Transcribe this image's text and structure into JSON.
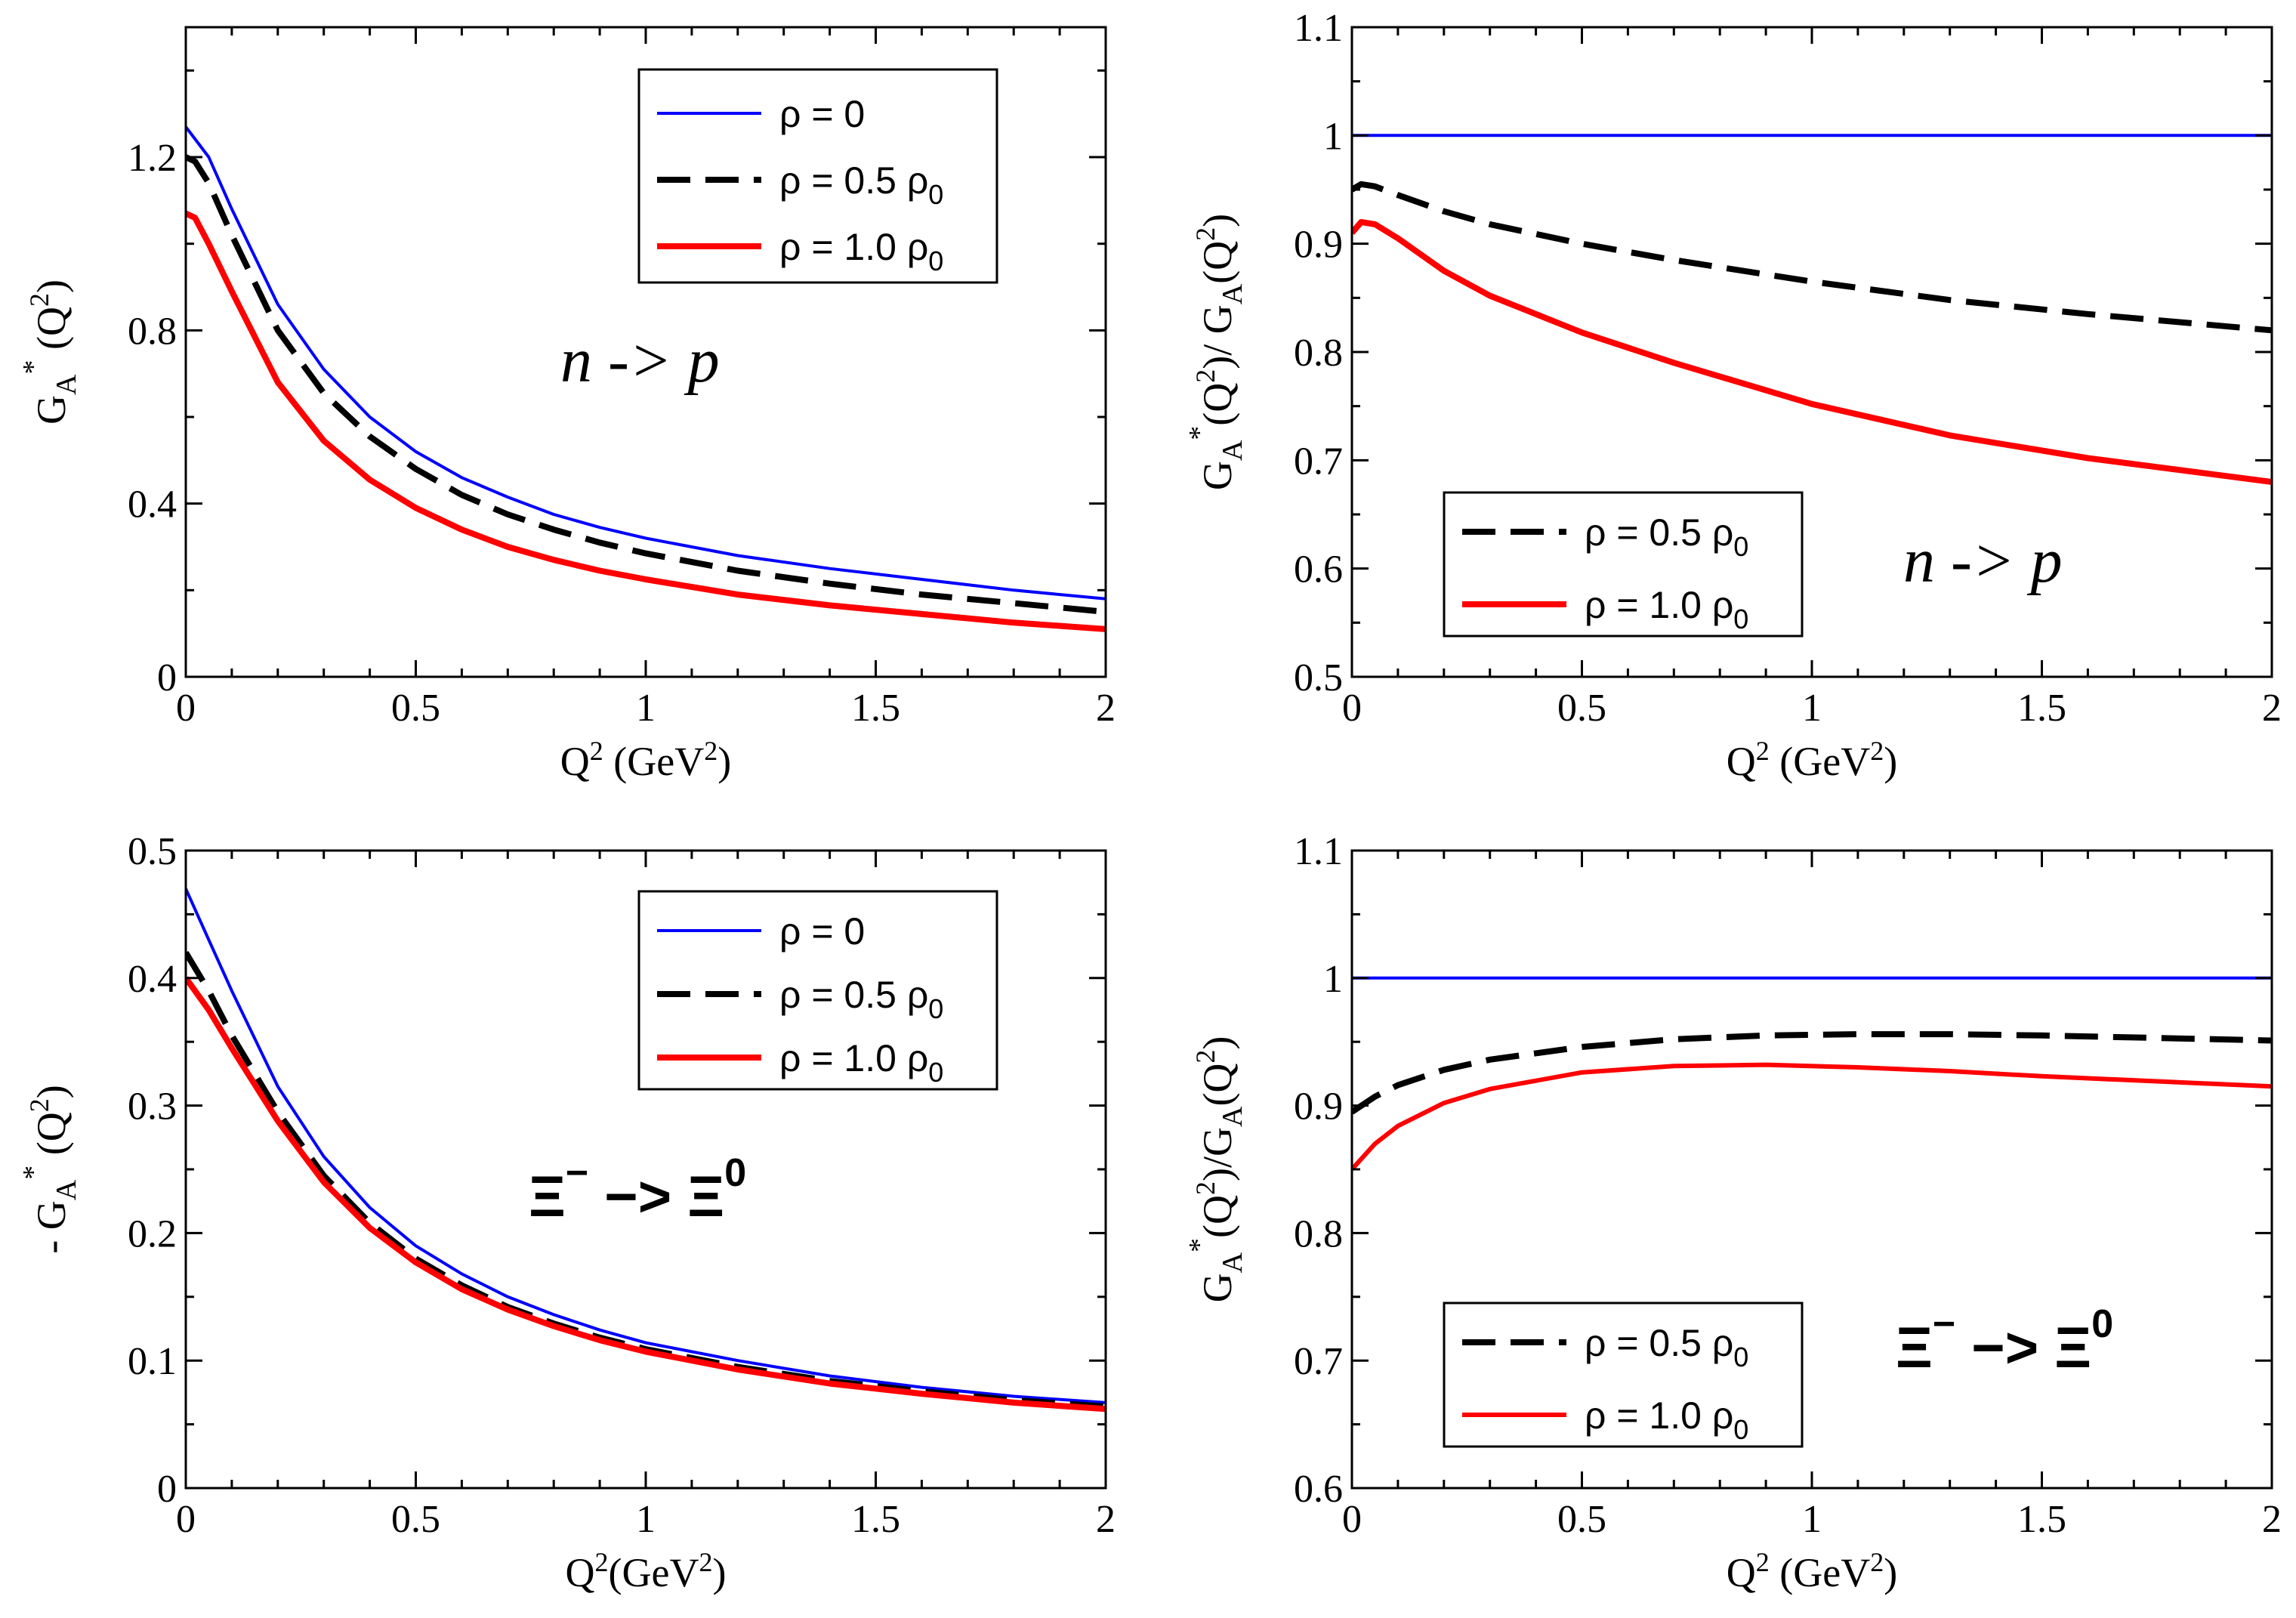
{
  "chart_data": [
    {
      "type": "line",
      "panel": "top-left",
      "xlabel": "Q^2 (GeV^2)",
      "ylabel": "G_A^*(Q^2)",
      "xlabel_parts": {
        "q": "Q",
        "sup1": "2",
        "unit": " (GeV",
        "sup2": "2",
        "close": ")"
      },
      "ylabel_parts": {
        "g": "G",
        "sub": "A",
        "star": "*",
        "arg": " (Q",
        "sup": "2",
        "close": ")"
      },
      "xlim": [
        0,
        2
      ],
      "ylim": [
        0,
        1.5
      ],
      "xticks": [
        0,
        0.5,
        1,
        1.5,
        2
      ],
      "xtick_labels": [
        "0",
        "0.5",
        "1",
        "1.5",
        "2"
      ],
      "yticks": [
        0,
        0.4,
        0.8,
        1.2
      ],
      "ytick_labels": [
        "0",
        "0.4",
        "0.8",
        "1.2"
      ],
      "annotation": "n -> p",
      "legend_position": "top-right",
      "legend": [
        {
          "text": "ρ =  0",
          "sub": ""
        },
        {
          "text": "ρ = 0.5 ρ",
          "sub": "0"
        },
        {
          "text": "ρ = 1.0 ρ",
          "sub": "0"
        }
      ],
      "series": [
        {
          "name": "ρ = 0",
          "color": "#0000ff",
          "style": "solid",
          "width": 4,
          "x": [
            0,
            0.05,
            0.1,
            0.2,
            0.3,
            0.4,
            0.5,
            0.6,
            0.7,
            0.8,
            0.9,
            1.0,
            1.2,
            1.4,
            1.6,
            1.8,
            2.0
          ],
          "y": [
            1.27,
            1.2,
            1.08,
            0.86,
            0.71,
            0.6,
            0.52,
            0.46,
            0.415,
            0.375,
            0.345,
            0.32,
            0.28,
            0.25,
            0.225,
            0.2,
            0.18
          ]
        },
        {
          "name": "ρ = 0.5 ρ0",
          "color": "#000000",
          "style": "dashed",
          "width": 8,
          "x": [
            0,
            0.02,
            0.05,
            0.1,
            0.2,
            0.3,
            0.4,
            0.5,
            0.6,
            0.7,
            0.8,
            0.9,
            1.0,
            1.2,
            1.4,
            1.6,
            1.8,
            2.0
          ],
          "y": [
            1.2,
            1.19,
            1.14,
            1.02,
            0.8,
            0.655,
            0.555,
            0.48,
            0.42,
            0.375,
            0.34,
            0.31,
            0.285,
            0.245,
            0.215,
            0.19,
            0.17,
            0.15
          ]
        },
        {
          "name": "ρ = 1.0 ρ0",
          "color": "#ff0000",
          "style": "solid",
          "width": 8,
          "x": [
            0,
            0.02,
            0.05,
            0.1,
            0.2,
            0.3,
            0.4,
            0.5,
            0.6,
            0.7,
            0.8,
            0.9,
            1.0,
            1.2,
            1.4,
            1.6,
            1.8,
            2.0
          ],
          "y": [
            1.07,
            1.06,
            1.0,
            0.89,
            0.68,
            0.545,
            0.455,
            0.39,
            0.34,
            0.3,
            0.27,
            0.245,
            0.225,
            0.19,
            0.165,
            0.145,
            0.125,
            0.11
          ]
        }
      ]
    },
    {
      "type": "line",
      "panel": "top-right",
      "xlabel": "Q^2 (GeV^2)",
      "ylabel": "G_A^*(Q^2)/ G_A(Q^2)",
      "xlabel_parts": {
        "q": "Q",
        "sup1": "2",
        "unit": " (GeV",
        "sup2": "2",
        "close": ")"
      },
      "ylabel_parts": {
        "g": "G",
        "sub": "A",
        "star": "*",
        "arg": "(Q",
        "sup": "2",
        "mid": ")/ G",
        "sub2": "A",
        "arg2": "(Q",
        "sup2": "2",
        "close": ")"
      },
      "xlim": [
        0,
        2
      ],
      "ylim": [
        0.5,
        1.1
      ],
      "xticks": [
        0,
        0.5,
        1,
        1.5,
        2
      ],
      "xtick_labels": [
        "0",
        "0.5",
        "1",
        "1.5",
        "2"
      ],
      "yticks": [
        0.5,
        0.6,
        0.7,
        0.8,
        0.9,
        1,
        1.1
      ],
      "ytick_labels": [
        "0.5",
        "0.6",
        "0.7",
        "0.8",
        "0.9",
        "1",
        "1.1"
      ],
      "annotation": "n ->  p",
      "legend_position": "bottom-left",
      "legend": [
        {
          "text": "ρ = 0.5 ρ",
          "sub": "0"
        },
        {
          "text": "ρ = 1.0 ρ",
          "sub": "0"
        }
      ],
      "series": [
        {
          "name": "ρ = 0",
          "color": "#0000ff",
          "style": "solid",
          "width": 4,
          "x": [
            0,
            2
          ],
          "y": [
            1.0,
            1.0
          ]
        },
        {
          "name": "ρ = 0.5 ρ0",
          "color": "#000000",
          "style": "dashed",
          "width": 8,
          "x": [
            0,
            0.02,
            0.05,
            0.1,
            0.2,
            0.3,
            0.5,
            0.7,
            1.0,
            1.3,
            1.6,
            2.0
          ],
          "y": [
            0.95,
            0.955,
            0.953,
            0.945,
            0.93,
            0.918,
            0.9,
            0.885,
            0.865,
            0.848,
            0.835,
            0.82
          ]
        },
        {
          "name": "ρ = 1.0 ρ0",
          "color": "#ff0000",
          "style": "solid",
          "width": 8,
          "x": [
            0,
            0.02,
            0.05,
            0.1,
            0.2,
            0.3,
            0.5,
            0.7,
            1.0,
            1.3,
            1.6,
            2.0
          ],
          "y": [
            0.91,
            0.92,
            0.918,
            0.905,
            0.875,
            0.852,
            0.818,
            0.79,
            0.752,
            0.723,
            0.702,
            0.68
          ]
        }
      ]
    },
    {
      "type": "line",
      "panel": "bottom-left",
      "xlabel": "Q^2(GeV^2)",
      "ylabel": "- G_A^*(Q^2)",
      "xlabel_parts": {
        "q": "Q",
        "sup1": "2",
        "unit": "(GeV",
        "sup2": "2",
        "close": ")"
      },
      "ylabel_parts": {
        "g": "- G",
        "sub": "A",
        "star": "*",
        "arg": " (Q",
        "sup": "2",
        "close": ")"
      },
      "xlim": [
        0,
        2
      ],
      "ylim": [
        0,
        0.5
      ],
      "xticks": [
        0,
        0.5,
        1,
        1.5,
        2
      ],
      "xtick_labels": [
        "0",
        "0.5",
        "1",
        "1.5",
        "2"
      ],
      "yticks": [
        0,
        0.1,
        0.2,
        0.3,
        0.4,
        0.5
      ],
      "ytick_labels": [
        "0",
        "0.1",
        "0.2",
        "0.3",
        "0.4",
        "0.5"
      ],
      "annotation": {
        "base1": "Ξ",
        "sup1": "−",
        "arrow": " −> ",
        "base2": "Ξ",
        "sup2": "0"
      },
      "legend_position": "top-right",
      "legend": [
        {
          "text": "ρ =  0",
          "sub": ""
        },
        {
          "text": "ρ = 0.5 ρ",
          "sub": "0"
        },
        {
          "text": "ρ = 1.0 ρ",
          "sub": "0"
        }
      ],
      "series": [
        {
          "name": "ρ = 0",
          "color": "#0000ff",
          "style": "solid",
          "width": 4,
          "x": [
            0,
            0.05,
            0.1,
            0.2,
            0.3,
            0.4,
            0.5,
            0.6,
            0.7,
            0.8,
            0.9,
            1.0,
            1.2,
            1.4,
            1.6,
            1.8,
            2.0
          ],
          "y": [
            0.47,
            0.43,
            0.39,
            0.315,
            0.26,
            0.22,
            0.19,
            0.168,
            0.15,
            0.136,
            0.124,
            0.114,
            0.1,
            0.088,
            0.079,
            0.072,
            0.067
          ]
        },
        {
          "name": "ρ = 0.5 ρ0",
          "color": "#000000",
          "style": "dashed",
          "width": 8,
          "x": [
            0,
            0.05,
            0.1,
            0.2,
            0.3,
            0.4,
            0.5,
            0.6,
            0.7,
            0.8,
            0.9,
            1.0,
            1.2,
            1.4,
            1.6,
            1.8,
            2.0
          ],
          "y": [
            0.42,
            0.39,
            0.355,
            0.295,
            0.245,
            0.208,
            0.18,
            0.159,
            0.142,
            0.129,
            0.118,
            0.109,
            0.095,
            0.084,
            0.076,
            0.069,
            0.064
          ]
        },
        {
          "name": "ρ = 1.0 ρ0",
          "color": "#ff0000",
          "style": "solid",
          "width": 8,
          "x": [
            0,
            0.05,
            0.1,
            0.2,
            0.3,
            0.4,
            0.5,
            0.6,
            0.7,
            0.8,
            0.9,
            1.0,
            1.2,
            1.4,
            1.6,
            1.8,
            2.0
          ],
          "y": [
            0.4,
            0.375,
            0.345,
            0.288,
            0.24,
            0.204,
            0.177,
            0.156,
            0.14,
            0.127,
            0.116,
            0.107,
            0.093,
            0.082,
            0.074,
            0.067,
            0.062
          ]
        }
      ]
    },
    {
      "type": "line",
      "panel": "bottom-right",
      "xlabel": "Q^2 (GeV^2)",
      "ylabel": "G_A^*(Q^2)/G_A(Q^2)",
      "xlabel_parts": {
        "q": "Q",
        "sup1": "2",
        "unit": " (GeV",
        "sup2": "2",
        "close": ")"
      },
      "ylabel_parts": {
        "g": "G",
        "sub": "A",
        "star": "*",
        "arg": "(Q",
        "sup": "2",
        "mid": ")/G",
        "sub2": "A",
        "arg2": "(Q",
        "sup2": "2",
        "close": ")"
      },
      "xlim": [
        0,
        2
      ],
      "ylim": [
        0.6,
        1.1
      ],
      "xticks": [
        0,
        0.5,
        1,
        1.5,
        2
      ],
      "xtick_labels": [
        "0",
        "0.5",
        "1",
        "1.5",
        "2"
      ],
      "yticks": [
        0.6,
        0.7,
        0.8,
        0.9,
        1,
        1.1
      ],
      "ytick_labels": [
        "0.6",
        "0.7",
        "0.8",
        "0.9",
        "1",
        "1.1"
      ],
      "annotation": {
        "base1": "Ξ",
        "sup1": "−",
        "arrow": " −> ",
        "base2": "Ξ",
        "sup2": "0"
      },
      "legend_position": "bottom-left",
      "legend": [
        {
          "text": "ρ = 0.5 ρ",
          "sub": "0"
        },
        {
          "text": "ρ = 1.0 ρ",
          "sub": "0"
        }
      ],
      "series": [
        {
          "name": "ρ = 0",
          "color": "#0000ff",
          "style": "solid",
          "width": 4,
          "x": [
            0,
            2
          ],
          "y": [
            1.0,
            1.0
          ]
        },
        {
          "name": "ρ = 0.5 ρ0",
          "color": "#000000",
          "style": "dashed",
          "width": 8,
          "x": [
            0,
            0.05,
            0.1,
            0.2,
            0.3,
            0.5,
            0.7,
            0.9,
            1.1,
            1.3,
            1.5,
            1.75,
            2.0
          ],
          "y": [
            0.895,
            0.907,
            0.916,
            0.928,
            0.936,
            0.946,
            0.952,
            0.955,
            0.956,
            0.956,
            0.955,
            0.953,
            0.951
          ]
        },
        {
          "name": "ρ = 1.0 ρ0",
          "color": "#ff0000",
          "style": "solid",
          "width": 6,
          "x": [
            0,
            0.05,
            0.1,
            0.2,
            0.3,
            0.5,
            0.7,
            0.9,
            1.1,
            1.3,
            1.5,
            1.75,
            2.0
          ],
          "y": [
            0.85,
            0.87,
            0.884,
            0.902,
            0.913,
            0.926,
            0.931,
            0.932,
            0.93,
            0.927,
            0.923,
            0.919,
            0.915
          ]
        }
      ]
    }
  ]
}
